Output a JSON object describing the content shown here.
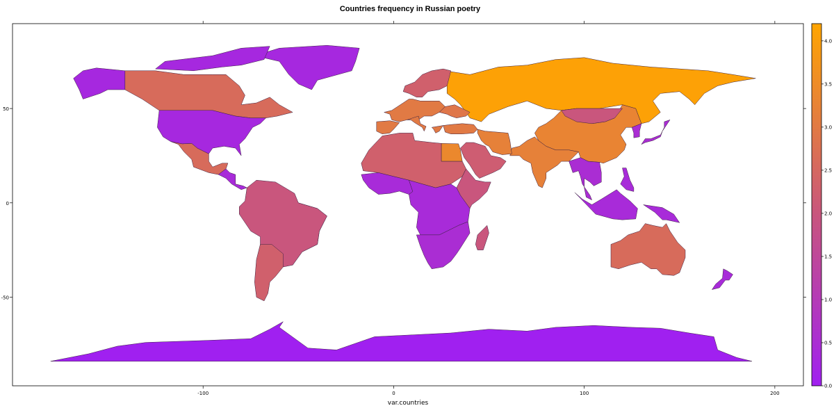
{
  "title": "Countries frequency in Russian poetry",
  "xlabel": "var.countries",
  "x_ticks": [
    "-100",
    "0",
    "100",
    "200"
  ],
  "y_ticks": [
    "50",
    "0",
    "-50"
  ],
  "colorbar": {
    "ticks": [
      "0.0",
      "0.5",
      "1.0",
      "1.5",
      "2.0",
      "2.5",
      "3.0",
      "3.5",
      "4.0"
    ],
    "range": [
      0,
      4.2
    ],
    "low_color": "#a020f0",
    "high_color": "#ffa500"
  },
  "chart_data": {
    "type": "choropleth",
    "xlim": [
      -200,
      215
    ],
    "ylim": [
      -97,
      95
    ],
    "value_range": [
      0,
      4.2
    ],
    "regions": [
      {
        "name": "Russia",
        "value": 4.1
      },
      {
        "name": "Egypt",
        "value": 3.4
      },
      {
        "name": "China",
        "value": 3.3
      },
      {
        "name": "India",
        "value": 3.2
      },
      {
        "name": "Iran",
        "value": 3.2
      },
      {
        "name": "Turkey",
        "value": 3.0
      },
      {
        "name": "Western Europe",
        "value": 3.0
      },
      {
        "name": "Ukraine",
        "value": 2.9
      },
      {
        "name": "Greece",
        "value": 3.0
      },
      {
        "name": "Italy",
        "value": 3.0
      },
      {
        "name": "Spain",
        "value": 3.0
      },
      {
        "name": "Canada",
        "value": 2.6
      },
      {
        "name": "Mexico",
        "value": 2.6
      },
      {
        "name": "Brazil",
        "value": 2.5
      },
      {
        "name": "Australia",
        "value": 2.6
      },
      {
        "name": "North Africa",
        "value": 2.3
      },
      {
        "name": "Arabia",
        "value": 2.2
      },
      {
        "name": "Scandinavia",
        "value": 2.3
      },
      {
        "name": "Mongolia",
        "value": 2.0
      },
      {
        "name": "South America",
        "value": 2.0
      },
      {
        "name": "Argentina",
        "value": 2.3
      },
      {
        "name": "Ethiopia",
        "value": 2.0
      },
      {
        "name": "Madagascar",
        "value": 2.0
      },
      {
        "name": "United States",
        "value": 0.3
      },
      {
        "name": "Alaska",
        "value": 0.3
      },
      {
        "name": "Greenland",
        "value": 0.3
      },
      {
        "name": "Arctic Islands",
        "value": 0.3
      },
      {
        "name": "Central America",
        "value": 0.4
      },
      {
        "name": "West Africa",
        "value": 0.4
      },
      {
        "name": "Central Africa",
        "value": 0.4
      },
      {
        "name": "Southern Africa",
        "value": 0.5
      },
      {
        "name": "Japan",
        "value": 0.5
      },
      {
        "name": "Korea",
        "value": 0.5
      },
      {
        "name": "Southeast Asia",
        "value": 0.5
      },
      {
        "name": "Indonesia",
        "value": 0.4
      },
      {
        "name": "New Guinea",
        "value": 0.4
      },
      {
        "name": "Philippines",
        "value": 0.4
      },
      {
        "name": "New Zealand",
        "value": 0.4
      },
      {
        "name": "Antarctica",
        "value": 0.0
      }
    ]
  }
}
